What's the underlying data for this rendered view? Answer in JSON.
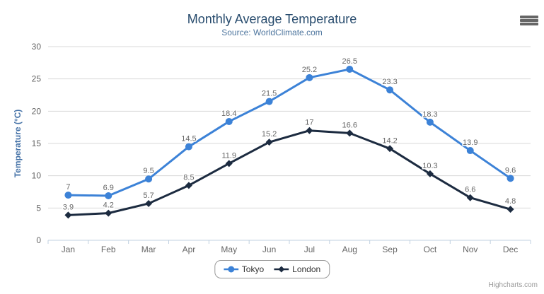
{
  "chart_data": {
    "type": "line",
    "title": "Monthly Average Temperature",
    "subtitle": "Source: WorldClimate.com",
    "categories": [
      "Jan",
      "Feb",
      "Mar",
      "Apr",
      "May",
      "Jun",
      "Jul",
      "Aug",
      "Sep",
      "Oct",
      "Nov",
      "Dec"
    ],
    "series": [
      {
        "name": "Tokyo",
        "color": "#3c82d7",
        "marker": "circle",
        "values": [
          7,
          6.9,
          9.5,
          14.5,
          18.4,
          21.5,
          25.2,
          26.5,
          23.3,
          18.3,
          13.9,
          9.6
        ]
      },
      {
        "name": "London",
        "color": "#1c2b40",
        "marker": "diamond",
        "values": [
          3.9,
          4.2,
          5.7,
          8.5,
          11.9,
          15.2,
          17,
          16.6,
          14.2,
          10.3,
          6.6,
          4.8
        ]
      }
    ],
    "xlabel": "",
    "ylabel": "Temperature (°C)",
    "ylim": [
      0,
      30
    ],
    "yticks": [
      0,
      5,
      10,
      15,
      20,
      25,
      30
    ],
    "grid": true,
    "data_labels": true,
    "legend_position": "bottom-center",
    "credits": "Highcharts.com",
    "colors": {
      "title": "#274b6d",
      "subtitle": "#4d759e",
      "axis_title": "#4572a7",
      "grid_line": "#d8d8d8",
      "axis_line": "#c0d0e0",
      "tick_label": "#666666",
      "data_label": "#666666",
      "legend_text": "#333333",
      "legend_border": "#999999",
      "credits": "#999999",
      "menu_icon": "#666666"
    }
  },
  "icons": {
    "export_menu": "hamburger"
  }
}
